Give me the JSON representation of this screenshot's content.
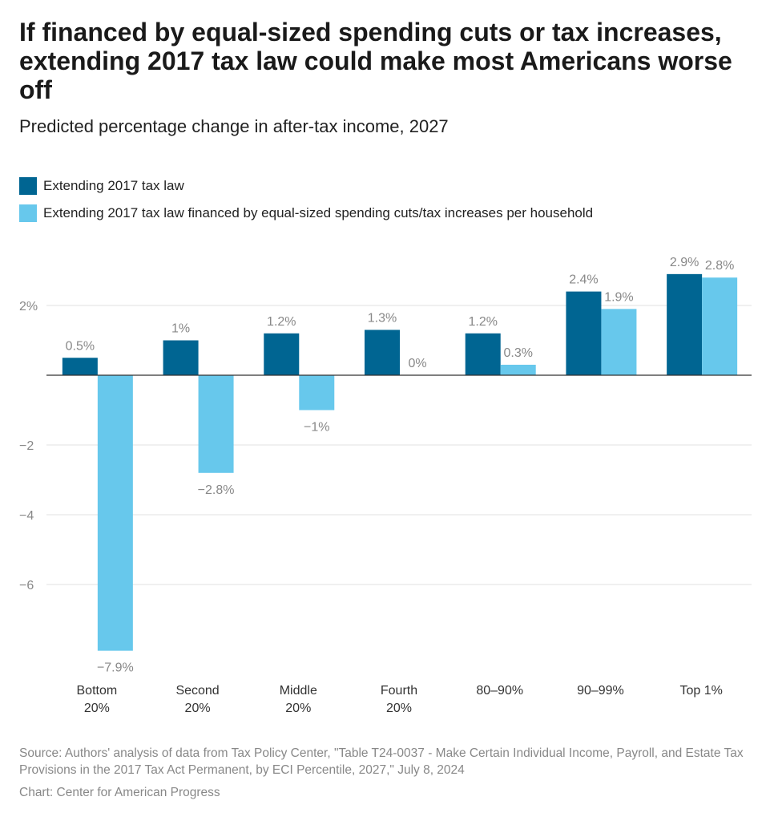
{
  "title": "If financed by equal-sized spending cuts or tax increases, extending 2017 tax law could make most Americans worse off",
  "subtitle": "Predicted percentage change in after-tax income, 2027",
  "source": "Source: Authors' analysis of data from Tax Policy Center, \"Table T24-0037 - Make Certain Individual Income, Payroll, and Estate Tax Provisions in the 2017 Tax Act Permanent, by ECI Percentile, 2027,\" July 8, 2024",
  "credit": "Chart: Center for American Progress",
  "colors": {
    "series1": "#006592",
    "series2": "#67c8ec",
    "grid": "#e2e2e2",
    "zero": "#333333",
    "label": "#888888"
  },
  "chart_data": {
    "type": "bar",
    "categories": [
      [
        "Bottom",
        "20%"
      ],
      [
        "Second",
        "20%"
      ],
      [
        "Middle",
        "20%"
      ],
      [
        "Fourth",
        "20%"
      ],
      [
        "80–90%"
      ],
      [
        "90–99%"
      ],
      [
        "Top 1%"
      ]
    ],
    "series": [
      {
        "name": "Extending 2017 tax law",
        "values": [
          0.5,
          1,
          1.2,
          1.3,
          1.2,
          2.4,
          2.9
        ],
        "labels": [
          "0.5%",
          "1%",
          "1.2%",
          "1.3%",
          "1.2%",
          "2.4%",
          "2.9%"
        ]
      },
      {
        "name": "Extending 2017 tax law financed by equal-sized spending cuts/tax increases per household",
        "values": [
          -7.9,
          -2.8,
          -1,
          0,
          0.3,
          1.9,
          2.8
        ],
        "labels": [
          "−7.9%",
          "−2.8%",
          "−1%",
          "0%",
          "0.3%",
          "1.9%",
          "2.8%"
        ]
      }
    ],
    "yticks": [
      2,
      0,
      -2,
      -4,
      -6
    ],
    "ytick_labels": [
      "2%",
      "",
      "−2",
      "−4",
      "−6"
    ],
    "ylim": [
      -8,
      2.9
    ],
    "grid": true,
    "legend": "top-left"
  }
}
